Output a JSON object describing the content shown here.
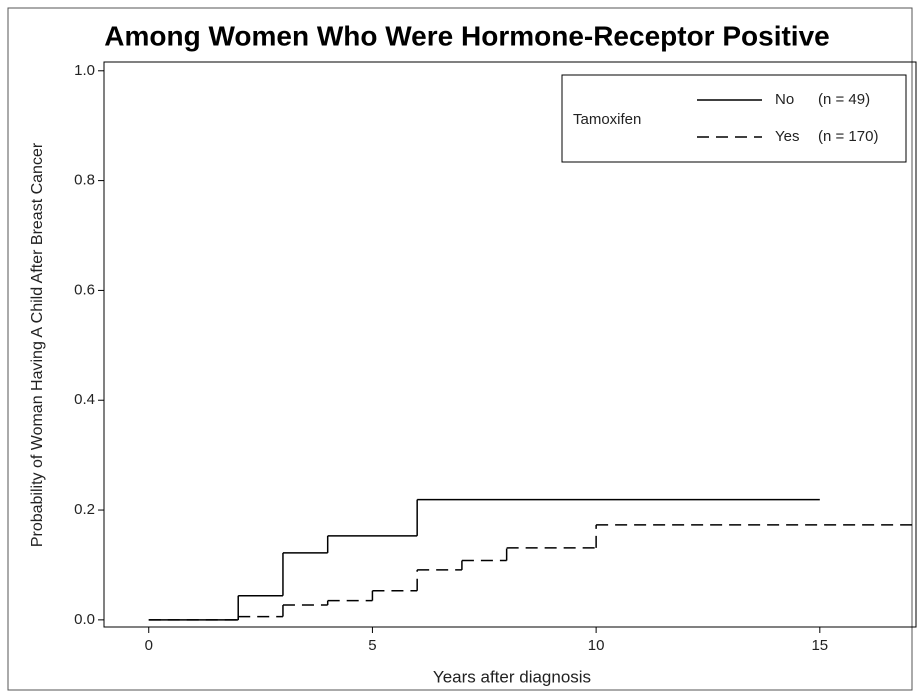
{
  "chart_data": {
    "type": "step",
    "title": "Among Women Who Were Hormone-Receptor Positive",
    "x_label": "Years after diagnosis",
    "y_label": "Probability of Woman Having A Child After Breast Cancer",
    "legend_title": "Tamoxifen",
    "legend": "top-right",
    "series": [
      {
        "name": "No",
        "label": "(n = 49)",
        "color": "#000000",
        "dashed": false,
        "x": [
          0,
          2,
          3,
          4,
          6,
          15
        ],
        "values": [
          0,
          0.044,
          0.122,
          0.153,
          0.219,
          0.219
        ]
      },
      {
        "name": "Yes",
        "label": "(n = 170)",
        "color": "#000000",
        "dashed": true,
        "x": [
          0,
          2,
          3,
          4,
          5,
          6,
          7,
          8,
          10,
          17.1
        ],
        "values": [
          0,
          0.006,
          0.027,
          0.035,
          0.053,
          0.091,
          0.108,
          0.131,
          0.173,
          0.173
        ]
      }
    ],
    "xlim": [
      -1,
      17.15
    ],
    "xticks": [
      0,
      5,
      10,
      15
    ],
    "ylim": [
      -0.013,
      1.016
    ],
    "yticks": [
      {
        "value": 0,
        "label": "0.0"
      },
      {
        "value": 0.2,
        "label": "0.2"
      },
      {
        "value": 0.4,
        "label": "0.4"
      },
      {
        "value": 0.6,
        "label": "0.6"
      },
      {
        "value": 0.8,
        "label": "0.8"
      },
      {
        "value": 1,
        "label": "1.0"
      }
    ],
    "grid": false
  }
}
